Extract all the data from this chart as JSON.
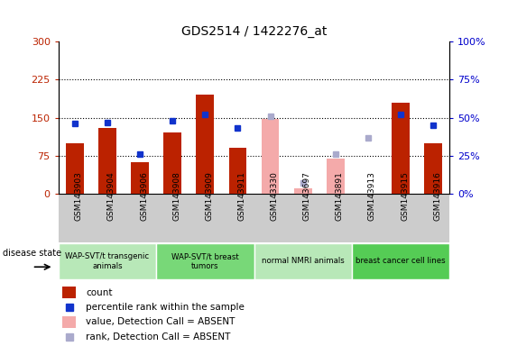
{
  "title": "GDS2514 / 1422276_at",
  "samples": [
    "GSM143903",
    "GSM143904",
    "GSM143906",
    "GSM143908",
    "GSM143909",
    "GSM143911",
    "GSM143330",
    "GSM143697",
    "GSM143891",
    "GSM143913",
    "GSM143915",
    "GSM143916"
  ],
  "count_values": [
    100,
    130,
    63,
    120,
    195,
    90,
    null,
    null,
    null,
    null,
    180,
    100
  ],
  "count_absent_values": [
    null,
    null,
    null,
    null,
    null,
    null,
    148,
    10,
    70,
    null,
    null,
    null
  ],
  "rank_values": [
    46,
    47,
    26,
    48,
    52,
    43,
    null,
    null,
    null,
    null,
    52,
    45
  ],
  "rank_absent_values": [
    null,
    null,
    null,
    null,
    null,
    null,
    51,
    7,
    26,
    37,
    null,
    null
  ],
  "ylim_left": [
    0,
    300
  ],
  "ylim_right": [
    0,
    100
  ],
  "yticks_left": [
    0,
    75,
    150,
    225,
    300
  ],
  "ytick_labels_left": [
    "0",
    "75",
    "150",
    "225",
    "300"
  ],
  "ytick_labels_right": [
    "0%",
    "25%",
    "50%",
    "75%",
    "100%"
  ],
  "groups": [
    {
      "label": "WAP-SVT/t transgenic\nanimals",
      "start": 0,
      "end": 3,
      "color": "#b8e8b8"
    },
    {
      "label": "WAP-SVT/t breast\ntumors",
      "start": 3,
      "end": 6,
      "color": "#78d878"
    },
    {
      "label": "normal NMRI animals",
      "start": 6,
      "end": 9,
      "color": "#b8e8b8"
    },
    {
      "label": "breast cancer cell lines",
      "start": 9,
      "end": 12,
      "color": "#55cc55"
    }
  ],
  "legend_items": [
    {
      "label": "count",
      "color": "#bb2200",
      "type": "bar"
    },
    {
      "label": "percentile rank within the sample",
      "color": "#1133cc",
      "type": "square"
    },
    {
      "label": "value, Detection Call = ABSENT",
      "color": "#f4aaaa",
      "type": "bar"
    },
    {
      "label": "rank, Detection Call = ABSENT",
      "color": "#aaaacc",
      "type": "square"
    }
  ],
  "count_color": "#bb2200",
  "rank_color": "#1133cc",
  "absent_count_color": "#f4aaaa",
  "absent_rank_color": "#aaaacc",
  "tick_area_bg": "#cccccc",
  "plot_bg": "#ffffff",
  "disease_state_label": "disease state"
}
